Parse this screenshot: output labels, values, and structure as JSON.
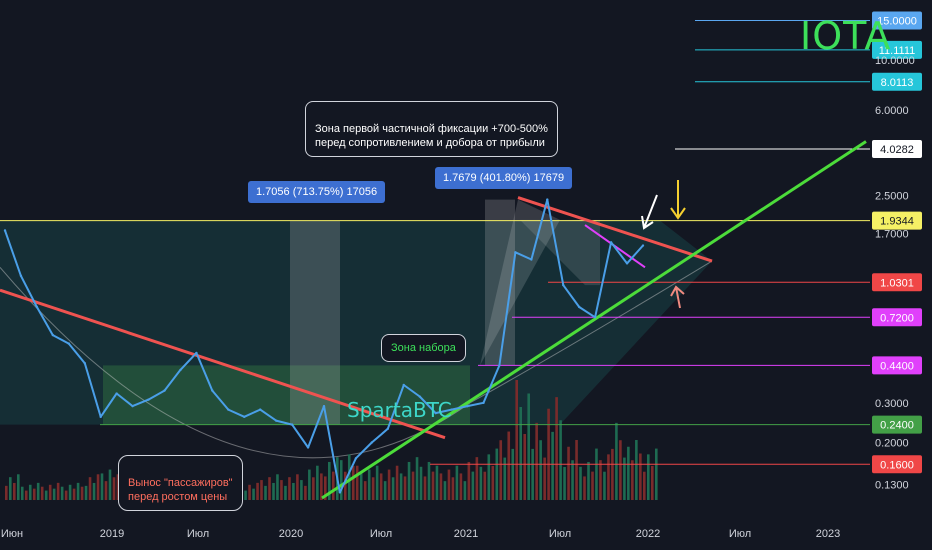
{
  "chart_data": {
    "type": "line",
    "title": "IOTA",
    "watermark": "SpartaBTC",
    "y_scale": "log",
    "ylim": [
      0.11,
      20
    ],
    "x_tick_labels": [
      "Июн",
      "2019",
      "Июл",
      "2020",
      "Июл",
      "2021",
      "Июл",
      "2022",
      "Июл",
      "2023"
    ],
    "y_tick_labels": [
      "15.0000",
      "11.1111",
      "10.0000",
      "8.0113",
      "6.0000",
      "4.0282",
      "2.5000",
      "1.9344",
      "1.7000",
      "1.0301",
      "0.7200",
      "0.4400",
      "0.3000",
      "0.2400",
      "0.2000",
      "0.1600",
      "0.1300"
    ],
    "price_series": {
      "name": "",
      "color": "#4a9fe8",
      "x": [
        "2018-06",
        "2018-07",
        "2018-08",
        "2018-09",
        "2018-10",
        "2018-11",
        "2018-12",
        "2019-01",
        "2019-02",
        "2019-03",
        "2019-04",
        "2019-05",
        "2019-06",
        "2019-07",
        "2019-08",
        "2019-09",
        "2019-10",
        "2019-11",
        "2019-12",
        "2020-01",
        "2020-02",
        "2020-03",
        "2020-04",
        "2020-05",
        "2020-06",
        "2020-07",
        "2020-08",
        "2020-09",
        "2020-10",
        "2020-11",
        "2020-12",
        "2021-01",
        "2021-02",
        "2021-03",
        "2021-04",
        "2021-05",
        "2021-06",
        "2021-07",
        "2021-08",
        "2021-09",
        "2021-10"
      ],
      "y": [
        1.75,
        1.1,
        0.8,
        0.6,
        0.55,
        0.45,
        0.26,
        0.33,
        0.29,
        0.31,
        0.34,
        0.42,
        0.5,
        0.34,
        0.28,
        0.26,
        0.28,
        0.25,
        0.24,
        0.19,
        0.29,
        0.12,
        0.17,
        0.2,
        0.23,
        0.36,
        0.32,
        0.27,
        0.28,
        0.29,
        0.3,
        0.44,
        1.4,
        1.3,
        2.4,
        1.0,
        0.8,
        0.72,
        1.55,
        1.25,
        1.5
      ]
    },
    "volume_series": {
      "name": "",
      "x": [
        "2018-06",
        "2018-07",
        "2018-08",
        "2018-09",
        "2018-10",
        "2018-11",
        "2018-12",
        "2019-01",
        "2019-02",
        "2019-03",
        "2019-04",
        "2019-05",
        "2019-06",
        "2019-07",
        "2019-08",
        "2019-09",
        "2019-10",
        "2019-11",
        "2019-12",
        "2020-01",
        "2020-02",
        "2020-03",
        "2020-04",
        "2020-05",
        "2020-06",
        "2020-07",
        "2020-08",
        "2020-09",
        "2020-10",
        "2020-11",
        "2020-12",
        "2021-01",
        "2021-02",
        "2021-03",
        "2021-04",
        "2021-05",
        "2021-06",
        "2021-07",
        "2021-08",
        "2021-09",
        "2021-10"
      ],
      "y": [
        3,
        2,
        2,
        2,
        2,
        3,
        4,
        3,
        3,
        3,
        3,
        4,
        5,
        3,
        3,
        2,
        3,
        3,
        3,
        4,
        5,
        6,
        4,
        4,
        4,
        5,
        5,
        4,
        4,
        5,
        6,
        9,
        14,
        9,
        12,
        7,
        5,
        6,
        9,
        7,
        6
      ]
    },
    "horizontal_levels": [
      {
        "label": "15.0000",
        "value": 15.0,
        "color": "#5aa7f0",
        "label_bg": "#5aa7f0",
        "label_fg": "#ffffff"
      },
      {
        "label": "11.1111",
        "value": 11.1111,
        "color": "#26c6da",
        "label_bg": "#26c6da",
        "label_fg": "#ffffff"
      },
      {
        "label": "8.0113",
        "value": 8.0113,
        "color": "#26c6da",
        "label_bg": "#26c6da",
        "label_fg": "#ffffff"
      },
      {
        "label": "4.0282",
        "value": 4.0282,
        "color": "#ffffff",
        "label_bg": "#ffffff",
        "label_fg": "#131722"
      },
      {
        "label": "1.9344",
        "value": 1.9344,
        "color": "#f5f065",
        "label_bg": "#f5f065",
        "label_fg": "#131722"
      },
      {
        "label": "1.0301",
        "value": 1.0301,
        "color": "#f04747",
        "label_bg": "#f04747",
        "label_fg": "#ffffff"
      },
      {
        "label": "0.7200",
        "value": 0.72,
        "color": "#e040fb",
        "label_bg": "#e040fb",
        "label_fg": "#ffffff"
      },
      {
        "label": "0.4400",
        "value": 0.44,
        "color": "#e040fb",
        "label_bg": "#e040fb",
        "label_fg": "#ffffff"
      },
      {
        "label": "0.2400",
        "value": 0.24,
        "color": "#43a047",
        "label_bg": "#43a047",
        "label_fg": "#ffffff"
      },
      {
        "label": "0.1600",
        "value": 0.16,
        "color": "#f04747",
        "label_bg": "#f04747",
        "label_fg": "#ffffff"
      }
    ],
    "plain_tick_labels": [
      "10.0000",
      "6.0000",
      "2.5000",
      "1.7000",
      "0.3000",
      "0.2000",
      "0.1300"
    ],
    "annotations": {
      "fixation_zone": "Зона первой частичной фиксации +700-500%\nперед сопротивлением и добора от прибыли",
      "accumulation_zone": "Зона набора",
      "shakeout": "Вынос \"пассажиров\"\nперед ростом цены",
      "measure_1": "1.7056 (713.75%) 17056",
      "measure_2": "1.7679 (401.80%) 17679"
    },
    "colors": {
      "background": "#131722",
      "trendline_red": "#ef5350",
      "trendline_green": "#4cdc3a",
      "measure_box": "#3d6fd1",
      "title": "#3de05a",
      "watermark": "#3dd6c8"
    }
  }
}
